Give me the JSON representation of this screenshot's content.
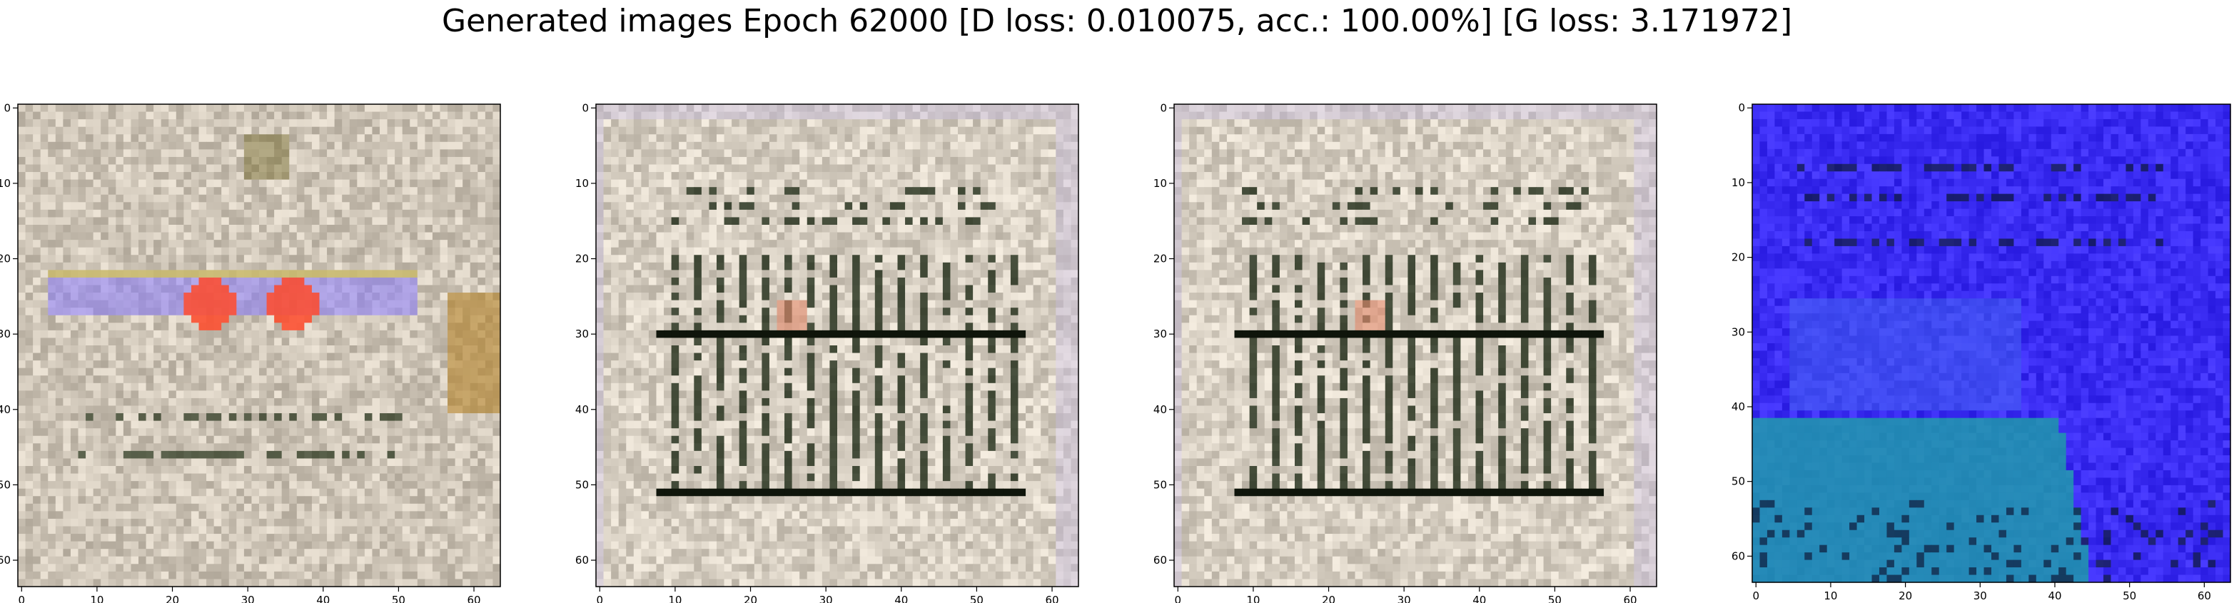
{
  "title": "Generated images Epoch 62000 [D loss: 0.010075, acc.: 100.00%] [G loss: 3.171972]",
  "chart_data": [
    {
      "type": "heatmap",
      "description_colors": {
        "base": "#cfc6b8",
        "dark": "#2e3a22",
        "accent1": "#8a7cff",
        "accent2": "#ff4a2a",
        "accent3": "#d8c84a"
      },
      "xlim": [
        0,
        63
      ],
      "ylim": [
        63,
        0
      ],
      "xticks": [
        0,
        10,
        20,
        30,
        40,
        50,
        60
      ],
      "yticks": [
        0,
        10,
        20,
        30,
        40,
        50,
        60
      ],
      "variant": "warm"
    },
    {
      "type": "heatmap",
      "description_colors": {
        "base": "#d7cfc2",
        "dark": "#1e2a16"
      },
      "xlim": [
        0,
        63
      ],
      "ylim": [
        63,
        0
      ],
      "xticks": [
        0,
        10,
        20,
        30,
        40,
        50,
        60
      ],
      "yticks": [
        0,
        10,
        20,
        30,
        40,
        50,
        60
      ],
      "variant": "grid"
    },
    {
      "type": "heatmap",
      "description_colors": {
        "base": "#d7cfc2",
        "dark": "#1e2a16"
      },
      "xlim": [
        0,
        63
      ],
      "ylim": [
        63,
        0
      ],
      "xticks": [
        0,
        10,
        20,
        30,
        40,
        50,
        60
      ],
      "yticks": [
        0,
        10,
        20,
        30,
        40,
        50,
        60
      ],
      "variant": "grid"
    },
    {
      "type": "heatmap",
      "description_colors": {
        "base": "#3a2cf2",
        "dark": "#0e1a3a",
        "accent1": "#1fa0a8"
      },
      "xlim": [
        0,
        63
      ],
      "ylim": [
        63,
        0
      ],
      "xticks": [
        0,
        10,
        20,
        30,
        40,
        50,
        60
      ],
      "yticks": [
        0,
        10,
        20,
        30,
        40,
        50,
        60
      ],
      "variant": "blue"
    }
  ]
}
